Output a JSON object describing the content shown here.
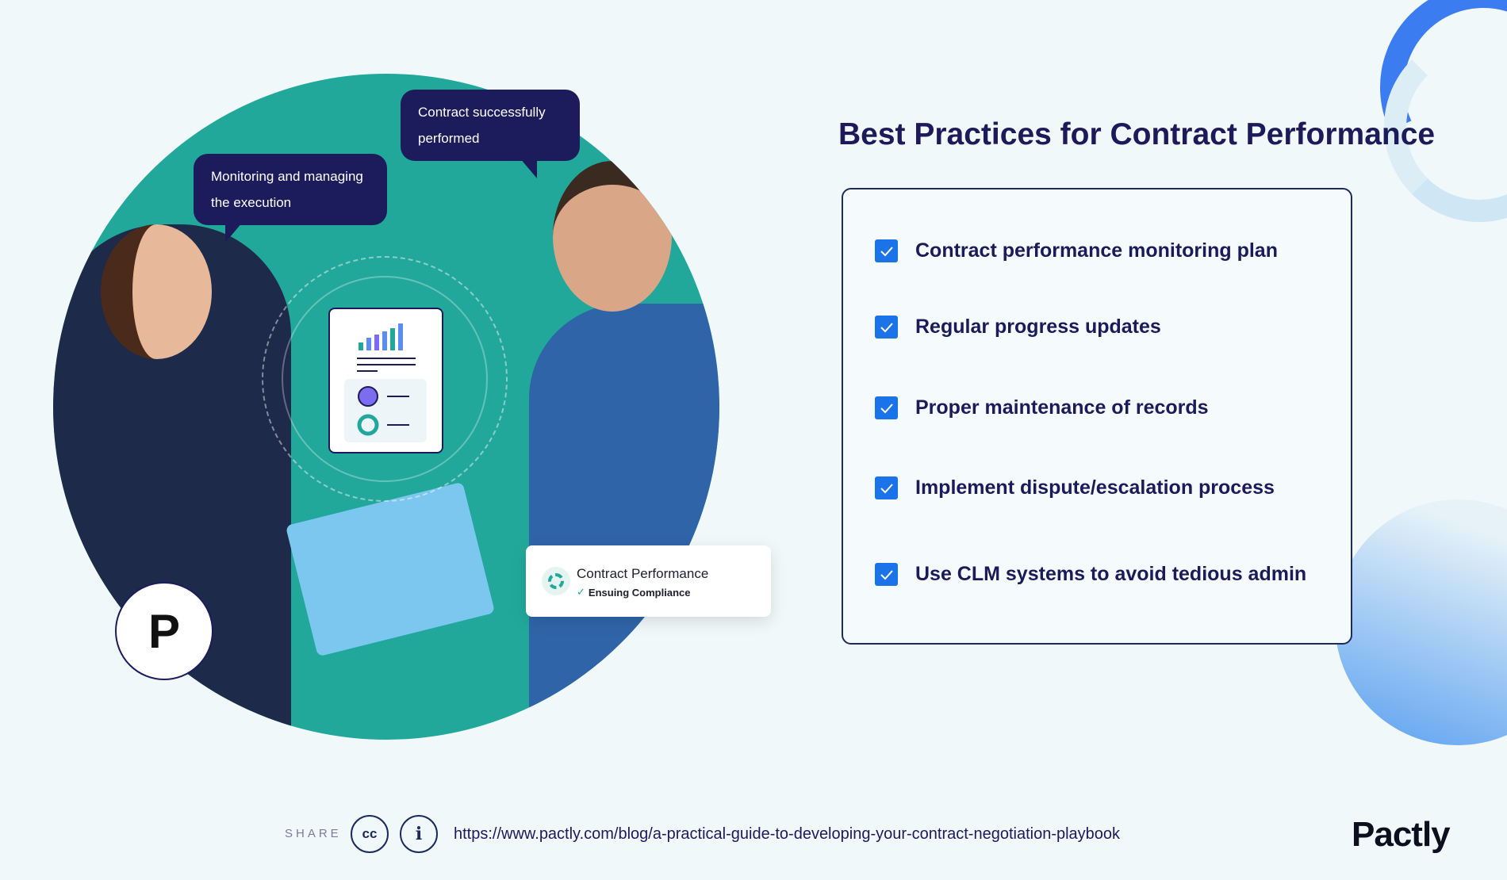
{
  "illustration": {
    "bubble_right": "Contract successfully performed",
    "bubble_left": "Monitoring and managing the execution",
    "card": {
      "title": "Contract Performance",
      "subtitle": "Ensuing Compliance",
      "icon": "gauge-icon"
    },
    "logo_letter": "P"
  },
  "panel": {
    "title": "Best Practices for Contract Performance",
    "items": [
      {
        "label": "Contract performance monitoring plan",
        "checked": true
      },
      {
        "label": "Regular progress updates",
        "checked": true
      },
      {
        "label": "Proper maintenance of records",
        "checked": true
      },
      {
        "label": "Implement dispute/escalation process",
        "checked": true
      },
      {
        "label": "Use CLM systems to avoid tedious admin",
        "checked": true
      }
    ]
  },
  "footer": {
    "share_label": "SHARE",
    "cc_label": "cc",
    "info_label": "i",
    "url": "https://www.pactly.com/blog/a-practical-guide-to-developing-your-contract-negotiation-playbook",
    "brand": "Pactly"
  },
  "colors": {
    "teal": "#22a89a",
    "navy": "#1c1c5c",
    "accent_blue": "#1a73e8",
    "background": "#f0f8fa"
  }
}
